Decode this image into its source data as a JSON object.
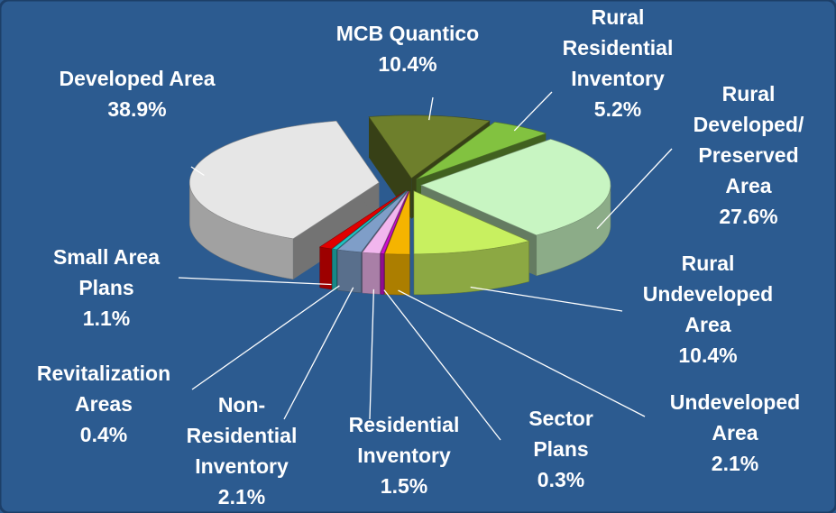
{
  "chart_data": {
    "type": "pie3d",
    "categories": [
      "MCB Quantico",
      "Rural\nResidential\nInventory",
      "Rural\nDeveloped/\nPreserved\nArea",
      "Rural\nUndeveloped\nArea",
      "Undeveloped\nArea",
      "Sector\nPlans",
      "Residential\nInventory",
      "Non-\nResidential\nInventory",
      "Revitalization\nAreas",
      "Small Area\nPlans",
      "Developed Area"
    ],
    "values": [
      10.4,
      5.2,
      27.6,
      10.4,
      2.1,
      0.3,
      1.5,
      2.1,
      0.4,
      1.1,
      38.9
    ],
    "value_labels": [
      "10.4%",
      "5.2%",
      "27.6%",
      "10.4%",
      "2.1%",
      "0.3%",
      "1.5%",
      "2.1%",
      "0.4%",
      "1.1%",
      "38.9%"
    ],
    "colors": [
      "#6e7f2c",
      "#82c240",
      "#c8f5c2",
      "#c8f060",
      "#f5b400",
      "#cc11cc",
      "#f2b6ee",
      "#7f9ec8",
      "#22c2c2",
      "#e00000",
      "#e6e6e6"
    ]
  }
}
